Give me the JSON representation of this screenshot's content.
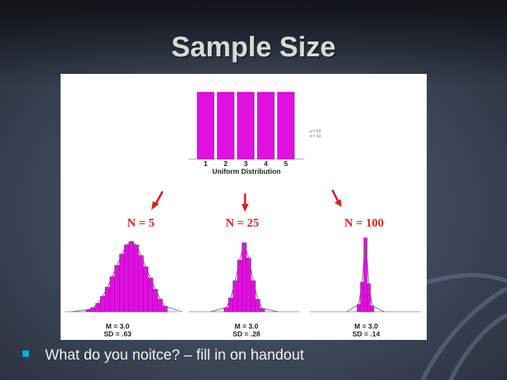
{
  "title": "Sample Size",
  "figure": {
    "uniform": {
      "bars": [
        100,
        100,
        100,
        100,
        100
      ],
      "axis_labels": [
        "1",
        "2",
        "3",
        "4",
        "5"
      ],
      "caption": "Uniform Distribution",
      "stats": [
        "μ = 3.0",
        "σ = .63"
      ]
    },
    "samples": [
      {
        "label": "N = 5",
        "bars": [
          3,
          6,
          12,
          22,
          35,
          50,
          66,
          82,
          95,
          100,
          95,
          80,
          64,
          48,
          32,
          18,
          8
        ],
        "stats": [
          "M = 3.0",
          "SD = .63"
        ]
      },
      {
        "label": "N = 25",
        "bars": [
          6,
          20,
          45,
          75,
          100,
          78,
          45,
          18,
          5
        ],
        "stats": [
          "M = 3.0",
          "SD = .28"
        ]
      },
      {
        "label": "N = 100",
        "bars": [
          10,
          40,
          100,
          38,
          8
        ],
        "stats": [
          "M = 3.0",
          "SD = .14"
        ]
      }
    ]
  },
  "bullets": [
    {
      "marker": "n",
      "text": "What do you noitce? – fill in on handout"
    }
  ]
}
